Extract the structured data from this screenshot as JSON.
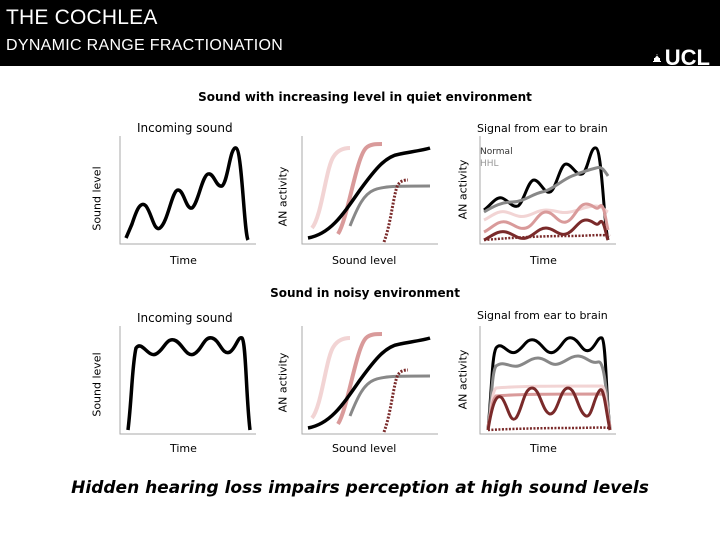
{
  "header": {
    "title": "THE COCHLEA",
    "subtitle": "DYNAMIC RANGE FRACTIONATION",
    "logo_text": "UCL"
  },
  "quiet": {
    "heading": "Sound with increasing level in quiet environment",
    "incoming_label": "Incoming sound",
    "signal_label": "Signal from ear to brain",
    "y1": "Sound level",
    "y2": "AN activity",
    "y3": "AN activity",
    "x1": "Time",
    "x2": "Sound level",
    "x3": "Time",
    "legend": [
      "Normal",
      "HHL"
    ]
  },
  "noisy": {
    "heading": "Sound in noisy environment",
    "incoming_label": "Incoming sound",
    "signal_label": "Signal from ear to brain",
    "y1": "Sound level",
    "y2": "AN activity",
    "y3": "AN activity",
    "x1": "Time",
    "x2": "Sound level",
    "x3": "Time"
  },
  "footer": "Hidden hearing loss impairs perception at high sound levels",
  "colors": {
    "black": "#000000",
    "gray": "#888888",
    "light_pink": "#f2d4d4",
    "mid_pink": "#d99a9a",
    "dark_red": "#7a2a2a"
  }
}
